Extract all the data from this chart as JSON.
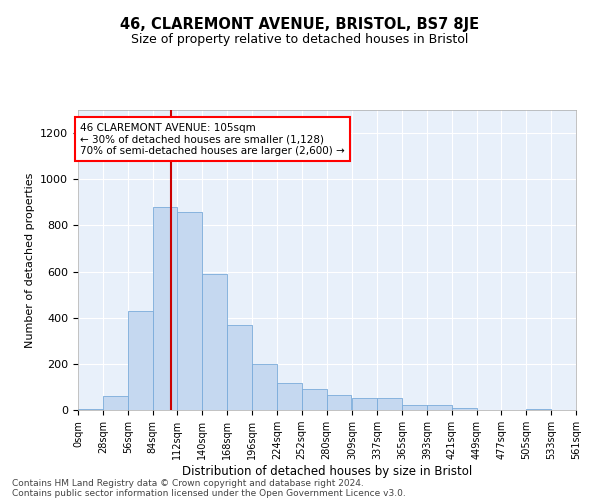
{
  "title": "46, CLAREMONT AVENUE, BRISTOL, BS7 8JE",
  "subtitle": "Size of property relative to detached houses in Bristol",
  "xlabel": "Distribution of detached houses by size in Bristol",
  "ylabel": "Number of detached properties",
  "bar_color": "#c5d8f0",
  "bar_edge_color": "#7aabda",
  "background_color": "#e8f0fa",
  "grid_color": "#ffffff",
  "vline_x": 105,
  "vline_color": "#cc0000",
  "bin_width": 28,
  "bin_starts": [
    0,
    28,
    56,
    84,
    112,
    140,
    168,
    196,
    224,
    252,
    280,
    309,
    337,
    365,
    393,
    421,
    449,
    477,
    505,
    533
  ],
  "bin_labels": [
    "0sqm",
    "28sqm",
    "56sqm",
    "84sqm",
    "112sqm",
    "140sqm",
    "168sqm",
    "196sqm",
    "224sqm",
    "252sqm",
    "280sqm",
    "309sqm",
    "337sqm",
    "365sqm",
    "393sqm",
    "421sqm",
    "449sqm",
    "477sqm",
    "505sqm",
    "533sqm",
    "561sqm"
  ],
  "bar_heights": [
    5,
    60,
    430,
    880,
    860,
    590,
    370,
    200,
    115,
    90,
    65,
    50,
    50,
    20,
    20,
    10,
    0,
    0,
    5,
    0
  ],
  "ylim": [
    0,
    1300
  ],
  "yticks": [
    0,
    200,
    400,
    600,
    800,
    1000,
    1200
  ],
  "annotation_text": "46 CLAREMONT AVENUE: 105sqm\n← 30% of detached houses are smaller (1,128)\n70% of semi-detached houses are larger (2,600) →",
  "footer_line1": "Contains HM Land Registry data © Crown copyright and database right 2024.",
  "footer_line2": "Contains public sector information licensed under the Open Government Licence v3.0."
}
